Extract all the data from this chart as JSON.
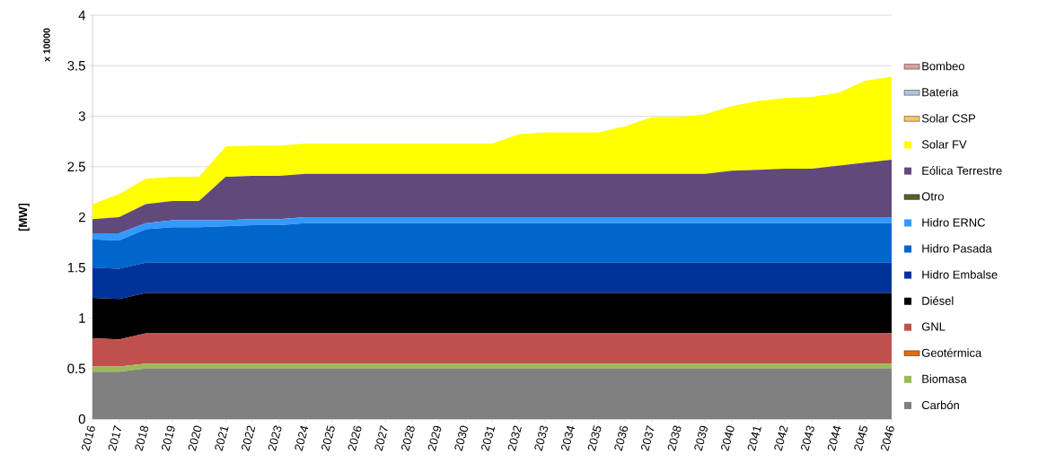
{
  "chart_data": {
    "type": "area",
    "stacked": true,
    "ylabel": "[MW]",
    "annotations": [
      "x 10000"
    ],
    "x": [
      2016,
      2017,
      2018,
      2019,
      2020,
      2021,
      2022,
      2023,
      2024,
      2025,
      2026,
      2027,
      2028,
      2029,
      2030,
      2031,
      2032,
      2033,
      2034,
      2035,
      2036,
      2037,
      2038,
      2039,
      2040,
      2041,
      2042,
      2043,
      2044,
      2045,
      2046
    ],
    "xlim": [
      2016,
      2046
    ],
    "xticks": [
      2016,
      2017,
      2018,
      2019,
      2020,
      2021,
      2022,
      2023,
      2024,
      2025,
      2026,
      2027,
      2028,
      2029,
      2030,
      2031,
      2032,
      2033,
      2034,
      2035,
      2036,
      2037,
      2038,
      2039,
      2040,
      2041,
      2042,
      2043,
      2044,
      2045,
      2046
    ],
    "ylim": [
      0,
      4
    ],
    "yticks": [
      0,
      0.5,
      1,
      1.5,
      2,
      2.5,
      3,
      3.5,
      4
    ],
    "grid": "y",
    "legend": "right",
    "series": [
      {
        "name": "Carbón",
        "color": "#808080",
        "values": [
          0.47,
          0.47,
          0.5,
          0.5,
          0.5,
          0.5,
          0.5,
          0.5,
          0.5,
          0.5,
          0.5,
          0.5,
          0.5,
          0.5,
          0.5,
          0.5,
          0.5,
          0.5,
          0.5,
          0.5,
          0.5,
          0.5,
          0.5,
          0.5,
          0.5,
          0.5,
          0.5,
          0.5,
          0.5,
          0.5,
          0.5
        ]
      },
      {
        "name": "Biomasa",
        "color": "#9bbb59",
        "values": [
          0.05,
          0.05,
          0.05,
          0.05,
          0.05,
          0.05,
          0.05,
          0.05,
          0.05,
          0.05,
          0.05,
          0.05,
          0.05,
          0.05,
          0.05,
          0.05,
          0.05,
          0.05,
          0.05,
          0.05,
          0.05,
          0.05,
          0.05,
          0.05,
          0.05,
          0.05,
          0.05,
          0.05,
          0.05,
          0.05,
          0.05
        ]
      },
      {
        "name": "Geotérmica",
        "color": "#e46c0a",
        "values": [
          null,
          null,
          null,
          null,
          null,
          null,
          null,
          null,
          null,
          null,
          null,
          null,
          null,
          null,
          null,
          null,
          null,
          null,
          null,
          null,
          null,
          null,
          null,
          null,
          null,
          null,
          null,
          null,
          null,
          null,
          null
        ]
      },
      {
        "name": "GNL",
        "color": "#c0504d",
        "values": [
          0.28,
          0.27,
          0.3,
          0.3,
          0.3,
          0.3,
          0.3,
          0.3,
          0.3,
          0.3,
          0.3,
          0.3,
          0.3,
          0.3,
          0.3,
          0.3,
          0.3,
          0.3,
          0.3,
          0.3,
          0.3,
          0.3,
          0.3,
          0.3,
          0.3,
          0.3,
          0.3,
          0.3,
          0.3,
          0.3,
          0.3
        ]
      },
      {
        "name": "Diésel",
        "color": "#000000",
        "values": [
          0.4,
          0.4,
          0.4,
          0.4,
          0.4,
          0.4,
          0.4,
          0.4,
          0.4,
          0.4,
          0.4,
          0.4,
          0.4,
          0.4,
          0.4,
          0.4,
          0.4,
          0.4,
          0.4,
          0.4,
          0.4,
          0.4,
          0.4,
          0.4,
          0.4,
          0.4,
          0.4,
          0.4,
          0.4,
          0.4,
          0.4
        ]
      },
      {
        "name": "Hidro Embalse",
        "color": "#003399",
        "values": [
          0.3,
          0.3,
          0.3,
          0.3,
          0.3,
          0.3,
          0.3,
          0.3,
          0.3,
          0.3,
          0.3,
          0.3,
          0.3,
          0.3,
          0.3,
          0.3,
          0.3,
          0.3,
          0.3,
          0.3,
          0.3,
          0.3,
          0.3,
          0.3,
          0.3,
          0.3,
          0.3,
          0.3,
          0.3,
          0.3,
          0.3
        ]
      },
      {
        "name": "Hidro Pasada",
        "color": "#0066cc",
        "values": [
          0.28,
          0.28,
          0.33,
          0.35,
          0.35,
          0.36,
          0.37,
          0.37,
          0.39,
          0.39,
          0.39,
          0.39,
          0.39,
          0.39,
          0.39,
          0.39,
          0.39,
          0.39,
          0.39,
          0.39,
          0.39,
          0.39,
          0.39,
          0.39,
          0.39,
          0.39,
          0.39,
          0.39,
          0.39,
          0.39,
          0.39
        ]
      },
      {
        "name": "Hidro ERNC",
        "color": "#3399ff",
        "values": [
          0.06,
          0.07,
          0.06,
          0.07,
          0.07,
          0.06,
          0.06,
          0.06,
          0.06,
          0.06,
          0.06,
          0.06,
          0.06,
          0.06,
          0.06,
          0.06,
          0.06,
          0.06,
          0.06,
          0.06,
          0.06,
          0.06,
          0.06,
          0.06,
          0.06,
          0.06,
          0.06,
          0.06,
          0.06,
          0.06,
          0.06
        ]
      },
      {
        "name": "Otro",
        "color": "#4f6228",
        "values": [
          null,
          null,
          null,
          null,
          null,
          null,
          null,
          null,
          null,
          null,
          null,
          null,
          null,
          null,
          null,
          null,
          null,
          null,
          null,
          null,
          null,
          null,
          null,
          null,
          null,
          null,
          null,
          null,
          null,
          null,
          null
        ]
      },
      {
        "name": "Eólica Terrestre",
        "color": "#604a7b",
        "values": [
          0.14,
          0.16,
          0.19,
          0.19,
          0.19,
          0.43,
          0.43,
          0.43,
          0.43,
          0.43,
          0.43,
          0.43,
          0.43,
          0.43,
          0.43,
          0.43,
          0.43,
          0.43,
          0.43,
          0.43,
          0.43,
          0.43,
          0.43,
          0.43,
          0.46,
          0.47,
          0.48,
          0.48,
          0.51,
          0.54,
          0.57
        ]
      },
      {
        "name": "Solar FV",
        "color": "#ffff00",
        "values": [
          0.15,
          0.23,
          0.25,
          0.24,
          0.24,
          0.3,
          0.3,
          0.3,
          0.3,
          0.3,
          0.3,
          0.3,
          0.3,
          0.3,
          0.3,
          0.3,
          0.39,
          0.41,
          0.41,
          0.41,
          0.47,
          0.56,
          0.56,
          0.59,
          0.64,
          0.68,
          0.7,
          0.71,
          0.72,
          0.81,
          0.82
        ]
      },
      {
        "name": "Solar CSP",
        "color": "#fac36a",
        "values": [
          null,
          null,
          null,
          null,
          null,
          null,
          null,
          null,
          null,
          null,
          null,
          null,
          null,
          null,
          null,
          null,
          null,
          null,
          null,
          null,
          null,
          null,
          null,
          null,
          null,
          null,
          null,
          null,
          null,
          null,
          null
        ]
      },
      {
        "name": "Bateria",
        "color": "#b0c4de",
        "values": [
          null,
          null,
          null,
          null,
          null,
          null,
          null,
          null,
          null,
          null,
          null,
          null,
          null,
          null,
          null,
          null,
          null,
          null,
          null,
          null,
          null,
          null,
          null,
          null,
          null,
          null,
          null,
          null,
          null,
          null,
          null
        ]
      },
      {
        "name": "Bombeo",
        "color": "#d9a0a0",
        "values": [
          null,
          null,
          null,
          null,
          null,
          null,
          null,
          null,
          null,
          null,
          null,
          null,
          null,
          null,
          null,
          null,
          null,
          null,
          null,
          null,
          null,
          null,
          null,
          null,
          null,
          null,
          null,
          null,
          null,
          null,
          null
        ]
      }
    ]
  }
}
